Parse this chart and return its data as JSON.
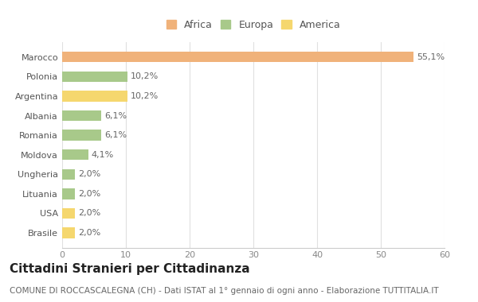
{
  "categories": [
    "Brasile",
    "USA",
    "Lituania",
    "Ungheria",
    "Moldova",
    "Romania",
    "Albania",
    "Argentina",
    "Polonia",
    "Marocco"
  ],
  "values": [
    2.0,
    2.0,
    2.0,
    2.0,
    4.1,
    6.1,
    6.1,
    10.2,
    10.2,
    55.1
  ],
  "labels": [
    "2,0%",
    "2,0%",
    "2,0%",
    "2,0%",
    "4,1%",
    "6,1%",
    "6,1%",
    "10,2%",
    "10,2%",
    "55,1%"
  ],
  "colors": [
    "#F5D76E",
    "#F5D76E",
    "#A8C98A",
    "#A8C98A",
    "#A8C98A",
    "#A8C98A",
    "#A8C98A",
    "#F5D76E",
    "#A8C98A",
    "#F0B27A"
  ],
  "legend_labels": [
    "Africa",
    "Europa",
    "America"
  ],
  "legend_colors": [
    "#F0B27A",
    "#A8C98A",
    "#F5D76E"
  ],
  "title": "Cittadini Stranieri per Cittadinanza",
  "subtitle": "COMUNE DI ROCCASCALEGNA (CH) - Dati ISTAT al 1° gennaio di ogni anno - Elaborazione TUTTITALIA.IT",
  "xlim": [
    0,
    60
  ],
  "xticks": [
    0,
    10,
    20,
    30,
    40,
    50,
    60
  ],
  "background_color": "#FFFFFF",
  "bar_height": 0.55,
  "title_fontsize": 11,
  "subtitle_fontsize": 7.5,
  "label_fontsize": 8,
  "tick_fontsize": 8,
  "legend_fontsize": 9
}
